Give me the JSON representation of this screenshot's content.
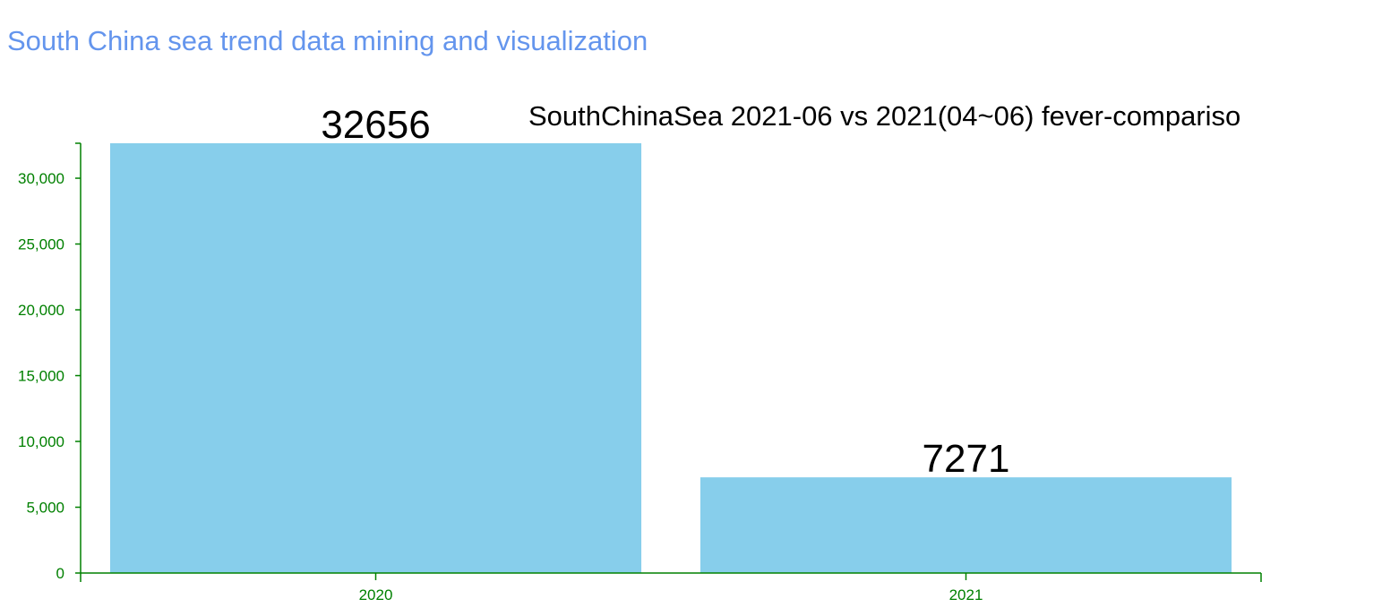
{
  "page": {
    "title": "South China sea trend data mining and visualization"
  },
  "colors": {
    "title": "#6495ed",
    "bar": "#87ceeb",
    "axis": "#008000",
    "label": "#000000"
  },
  "chart_data": {
    "type": "bar",
    "title": "SouthChinaSea 2021-06 vs 2021(04~06) fever-compariso",
    "categories": [
      "2020",
      "2021"
    ],
    "values": [
      32656,
      7271
    ],
    "data_labels": [
      "32656",
      "7271"
    ],
    "yticks": [
      0,
      5000,
      10000,
      15000,
      20000,
      25000,
      30000
    ],
    "ytick_labels": [
      "0",
      "5,000",
      "10,000",
      "15,000",
      "20,000",
      "25,000",
      "30,000"
    ],
    "ylim": [
      0,
      32656
    ],
    "xlabel": "",
    "ylabel": "",
    "grid": false,
    "legend": false
  }
}
